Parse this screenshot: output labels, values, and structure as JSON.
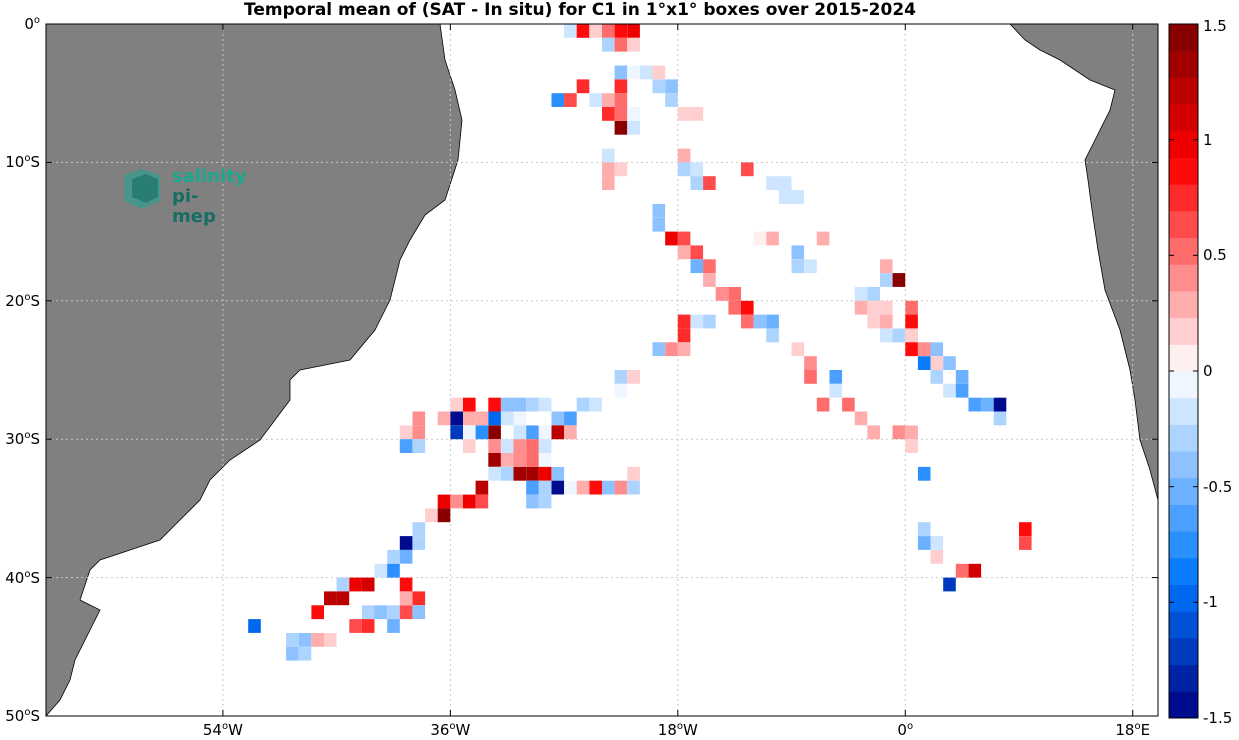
{
  "title": "Temporal mean of (SAT - In situ) for C1 in 1°x1° boxes over 2015-2024",
  "logo": {
    "line1": "salinity",
    "line2": "pi-mep"
  },
  "colors": {
    "land": "#808080",
    "grid": "#c8c8c8",
    "background": "#ffffff"
  },
  "map": {
    "lon_range": [
      -68,
      20
    ],
    "lat_range": [
      -50,
      0
    ],
    "y_ticks": [
      {
        "lat": 0,
        "deg": "0",
        "hem": ""
      },
      {
        "lat": -10,
        "deg": "10",
        "hem": "S"
      },
      {
        "lat": -20,
        "deg": "20",
        "hem": "S"
      },
      {
        "lat": -30,
        "deg": "30",
        "hem": "S"
      },
      {
        "lat": -40,
        "deg": "40",
        "hem": "S"
      },
      {
        "lat": -50,
        "deg": "50",
        "hem": "S"
      }
    ],
    "x_ticks": [
      {
        "lon": -54,
        "deg": "54",
        "hem": "W"
      },
      {
        "lon": -36,
        "deg": "36",
        "hem": "W"
      },
      {
        "lon": -18,
        "deg": "18",
        "hem": "W"
      },
      {
        "lon": 0,
        "deg": "0",
        "hem": ""
      },
      {
        "lon": 18,
        "deg": "18",
        "hem": "E"
      }
    ]
  },
  "colorbar": {
    "range": [
      -1.5,
      1.5
    ],
    "levels": 26,
    "ticks": [
      {
        "value": 1.5,
        "label": "1.5"
      },
      {
        "value": 1,
        "label": "1"
      },
      {
        "value": 0.5,
        "label": "0.5"
      },
      {
        "value": 0,
        "label": "0"
      },
      {
        "value": -0.5,
        "label": "-0.5"
      },
      {
        "value": -1,
        "label": "-1"
      },
      {
        "value": -1.5,
        "label": "-1.5"
      }
    ]
  },
  "chart_data": {
    "type": "heatmap",
    "title": "Temporal mean of (SAT - In situ) for C1 in 1°x1° boxes over 2015-2024",
    "cell_size_deg": 1,
    "units_note": "value = mean difference SAT - In situ",
    "cells": [
      {
        "lon": -26.5,
        "lat": -0.5,
        "v": -0.2
      },
      {
        "lon": -25.5,
        "lat": -0.5,
        "v": 0.9
      },
      {
        "lon": -24.5,
        "lat": -0.5,
        "v": 0.2
      },
      {
        "lon": -23.5,
        "lat": -0.5,
        "v": 0.5
      },
      {
        "lon": -22.5,
        "lat": -0.5,
        "v": 0.9
      },
      {
        "lon": -21.5,
        "lat": -0.5,
        "v": 1.0
      },
      {
        "lon": -23.5,
        "lat": -1.5,
        "v": -0.3
      },
      {
        "lon": -22.5,
        "lat": -1.5,
        "v": 0.5
      },
      {
        "lon": -21.5,
        "lat": -1.5,
        "v": 0.2
      },
      {
        "lon": -22.5,
        "lat": -3.5,
        "v": -0.4
      },
      {
        "lon": -21.5,
        "lat": -3.5,
        "v": -0.1
      },
      {
        "lon": -20.5,
        "lat": -3.5,
        "v": -0.2
      },
      {
        "lon": -19.5,
        "lat": -3.5,
        "v": 0.2
      },
      {
        "lon": -25.5,
        "lat": -4.5,
        "v": 0.8
      },
      {
        "lon": -22.5,
        "lat": -4.5,
        "v": 0.8
      },
      {
        "lon": -19.5,
        "lat": -4.5,
        "v": -0.3
      },
      {
        "lon": -18.5,
        "lat": -4.5,
        "v": -0.4
      },
      {
        "lon": -27.5,
        "lat": -5.5,
        "v": -0.8
      },
      {
        "lon": -26.5,
        "lat": -5.5,
        "v": 0.6
      },
      {
        "lon": -24.5,
        "lat": -5.5,
        "v": -0.2
      },
      {
        "lon": -23.5,
        "lat": -5.5,
        "v": 0.3
      },
      {
        "lon": -22.5,
        "lat": -5.5,
        "v": 0.5
      },
      {
        "lon": -18.5,
        "lat": -5.5,
        "v": -0.3
      },
      {
        "lon": -23.5,
        "lat": -6.5,
        "v": 0.7
      },
      {
        "lon": -22.5,
        "lat": -6.5,
        "v": 0.5
      },
      {
        "lon": -21.5,
        "lat": -6.5,
        "v": -0.1
      },
      {
        "lon": -17.5,
        "lat": -6.5,
        "v": 0.15
      },
      {
        "lon": -16.5,
        "lat": -6.5,
        "v": 0.15
      },
      {
        "lon": -22.5,
        "lat": -7.5,
        "v": 1.45
      },
      {
        "lon": -21.5,
        "lat": -7.5,
        "v": -0.15
      },
      {
        "lon": -23.5,
        "lat": -9.5,
        "v": -0.2
      },
      {
        "lon": -17.5,
        "lat": -9.5,
        "v": 0.3
      },
      {
        "lon": -23.5,
        "lat": -10.5,
        "v": 0.3
      },
      {
        "lon": -22.5,
        "lat": -10.5,
        "v": 0.15
      },
      {
        "lon": -17.5,
        "lat": -10.5,
        "v": -0.3
      },
      {
        "lon": -16.5,
        "lat": -10.5,
        "v": -0.2
      },
      {
        "lon": -12.5,
        "lat": -10.5,
        "v": 0.6
      },
      {
        "lon": -23.5,
        "lat": -11.5,
        "v": 0.3
      },
      {
        "lon": -16.5,
        "lat": -11.5,
        "v": -0.3
      },
      {
        "lon": -15.5,
        "lat": -11.5,
        "v": 0.6
      },
      {
        "lon": -10.5,
        "lat": -11.5,
        "v": -0.15
      },
      {
        "lon": -9.5,
        "lat": -11.5,
        "v": -0.2
      },
      {
        "lon": -9.5,
        "lat": -12.5,
        "v": -0.2
      },
      {
        "lon": -8.5,
        "lat": -12.5,
        "v": -0.2
      },
      {
        "lon": -19.5,
        "lat": -13.5,
        "v": -0.4
      },
      {
        "lon": -19.5,
        "lat": -14.5,
        "v": -0.4
      },
      {
        "lon": -18.5,
        "lat": -15.5,
        "v": 1.0
      },
      {
        "lon": -17.5,
        "lat": -15.5,
        "v": 0.6
      },
      {
        "lon": -11.5,
        "lat": -15.5,
        "v": 0.1
      },
      {
        "lon": -10.5,
        "lat": -15.5,
        "v": 0.3
      },
      {
        "lon": -6.5,
        "lat": -15.5,
        "v": 0.3
      },
      {
        "lon": -17.5,
        "lat": -16.5,
        "v": 0.3
      },
      {
        "lon": -16.5,
        "lat": -16.5,
        "v": 0.6
      },
      {
        "lon": -8.5,
        "lat": -16.5,
        "v": -0.4
      },
      {
        "lon": -16.5,
        "lat": -17.5,
        "v": -0.5
      },
      {
        "lon": -15.5,
        "lat": -17.5,
        "v": 0.5
      },
      {
        "lon": -8.5,
        "lat": -17.5,
        "v": -0.25
      },
      {
        "lon": -7.5,
        "lat": -17.5,
        "v": -0.2
      },
      {
        "lon": -1.5,
        "lat": -17.5,
        "v": 0.3
      },
      {
        "lon": -15.5,
        "lat": -18.5,
        "v": 0.3
      },
      {
        "lon": -1.5,
        "lat": -18.5,
        "v": -0.3
      },
      {
        "lon": -0.5,
        "lat": -18.5,
        "v": 1.4
      },
      {
        "lon": -14.5,
        "lat": -19.5,
        "v": 0.4
      },
      {
        "lon": -13.5,
        "lat": -19.5,
        "v": 0.5
      },
      {
        "lon": -3.5,
        "lat": -19.5,
        "v": -0.2
      },
      {
        "lon": -2.5,
        "lat": -19.5,
        "v": -0.3
      },
      {
        "lon": -13.5,
        "lat": -20.5,
        "v": 0.5
      },
      {
        "lon": -12.5,
        "lat": -20.5,
        "v": 0.9
      },
      {
        "lon": -3.5,
        "lat": -20.5,
        "v": 0.3
      },
      {
        "lon": -2.5,
        "lat": -20.5,
        "v": 0.2
      },
      {
        "lon": -1.5,
        "lat": -20.5,
        "v": 0.2
      },
      {
        "lon": 0.5,
        "lat": -20.5,
        "v": 0.5
      },
      {
        "lon": -17.5,
        "lat": -21.5,
        "v": 0.8
      },
      {
        "lon": -16.5,
        "lat": -21.5,
        "v": -0.2
      },
      {
        "lon": -15.5,
        "lat": -21.5,
        "v": -0.3
      },
      {
        "lon": -12.5,
        "lat": -21.5,
        "v": 0.5
      },
      {
        "lon": -11.5,
        "lat": -21.5,
        "v": -0.4
      },
      {
        "lon": -10.5,
        "lat": -21.5,
        "v": -0.5
      },
      {
        "lon": -2.5,
        "lat": -21.5,
        "v": 0.2
      },
      {
        "lon": -1.5,
        "lat": -21.5,
        "v": 0.3
      },
      {
        "lon": 0.5,
        "lat": -21.5,
        "v": 0.9
      },
      {
        "lon": -17.5,
        "lat": -22.5,
        "v": 0.8
      },
      {
        "lon": -10.5,
        "lat": -22.5,
        "v": -0.3
      },
      {
        "lon": -1.5,
        "lat": -22.5,
        "v": -0.2
      },
      {
        "lon": -0.5,
        "lat": -22.5,
        "v": -0.3
      },
      {
        "lon": 0.5,
        "lat": -22.5,
        "v": 0.2
      },
      {
        "lon": -19.5,
        "lat": -23.5,
        "v": -0.4
      },
      {
        "lon": -18.5,
        "lat": -23.5,
        "v": 0.4
      },
      {
        "lon": -17.5,
        "lat": -23.5,
        "v": 0.3
      },
      {
        "lon": -8.5,
        "lat": -23.5,
        "v": 0.15
      },
      {
        "lon": 0.5,
        "lat": -23.5,
        "v": 0.9
      },
      {
        "lon": 1.5,
        "lat": -23.5,
        "v": 0.4
      },
      {
        "lon": 2.5,
        "lat": -23.5,
        "v": -0.4
      },
      {
        "lon": -7.5,
        "lat": -24.5,
        "v": 0.4
      },
      {
        "lon": 1.5,
        "lat": -24.5,
        "v": -0.9
      },
      {
        "lon": 2.5,
        "lat": -24.5,
        "v": 0.2
      },
      {
        "lon": 3.5,
        "lat": -24.5,
        "v": -0.4
      },
      {
        "lon": -22.5,
        "lat": -25.5,
        "v": -0.3
      },
      {
        "lon": -21.5,
        "lat": -25.5,
        "v": 0.2
      },
      {
        "lon": -7.5,
        "lat": -25.5,
        "v": 0.5
      },
      {
        "lon": -5.5,
        "lat": -25.5,
        "v": -0.6
      },
      {
        "lon": 2.5,
        "lat": -25.5,
        "v": -0.3
      },
      {
        "lon": 4.5,
        "lat": -25.5,
        "v": -0.5
      },
      {
        "lon": -22.5,
        "lat": -26.5,
        "v": -0.1
      },
      {
        "lon": -5.5,
        "lat": -26.5,
        "v": -0.2
      },
      {
        "lon": 3.5,
        "lat": -26.5,
        "v": -0.2
      },
      {
        "lon": 4.5,
        "lat": -26.5,
        "v": -0.6
      },
      {
        "lon": -35.5,
        "lat": -27.5,
        "v": 0.2
      },
      {
        "lon": -34.5,
        "lat": -27.5,
        "v": 0.9
      },
      {
        "lon": -32.5,
        "lat": -27.5,
        "v": 0.9
      },
      {
        "lon": -31.5,
        "lat": -27.5,
        "v": -0.4
      },
      {
        "lon": -30.5,
        "lat": -27.5,
        "v": -0.4
      },
      {
        "lon": -29.5,
        "lat": -27.5,
        "v": -0.3
      },
      {
        "lon": -28.5,
        "lat": -27.5,
        "v": -0.2
      },
      {
        "lon": -25.5,
        "lat": -27.5,
        "v": -0.3
      },
      {
        "lon": -24.5,
        "lat": -27.5,
        "v": -0.2
      },
      {
        "lon": -6.5,
        "lat": -27.5,
        "v": 0.5
      },
      {
        "lon": -4.5,
        "lat": -27.5,
        "v": 0.5
      },
      {
        "lon": 5.5,
        "lat": -27.5,
        "v": -0.6
      },
      {
        "lon": 6.5,
        "lat": -27.5,
        "v": -0.5
      },
      {
        "lon": 7.5,
        "lat": -27.5,
        "v": -1.5
      },
      {
        "lon": -38.5,
        "lat": -28.5,
        "v": 0.4
      },
      {
        "lon": -36.5,
        "lat": -28.5,
        "v": 0.3
      },
      {
        "lon": -35.5,
        "lat": -28.5,
        "v": -1.4
      },
      {
        "lon": -34.5,
        "lat": -28.5,
        "v": 0.3
      },
      {
        "lon": -33.5,
        "lat": -28.5,
        "v": 0.3
      },
      {
        "lon": -32.5,
        "lat": -28.5,
        "v": -1.0
      },
      {
        "lon": -31.5,
        "lat": -28.5,
        "v": -0.2
      },
      {
        "lon": -30.5,
        "lat": -28.5,
        "v": -0.1
      },
      {
        "lon": -27.5,
        "lat": -28.5,
        "v": -0.4
      },
      {
        "lon": -26.5,
        "lat": -28.5,
        "v": -0.6
      },
      {
        "lon": -3.5,
        "lat": -28.5,
        "v": 0.3
      },
      {
        "lon": 7.5,
        "lat": -28.5,
        "v": -0.3
      },
      {
        "lon": -39.5,
        "lat": -29.5,
        "v": 0.2
      },
      {
        "lon": -38.5,
        "lat": -29.5,
        "v": 0.4
      },
      {
        "lon": -35.5,
        "lat": -29.5,
        "v": -1.2
      },
      {
        "lon": -34.5,
        "lat": -29.5,
        "v": -0.1
      },
      {
        "lon": -33.5,
        "lat": -29.5,
        "v": -0.7
      },
      {
        "lon": -32.5,
        "lat": -29.5,
        "v": 1.4
      },
      {
        "lon": -30.5,
        "lat": -29.5,
        "v": -0.2
      },
      {
        "lon": -29.5,
        "lat": -29.5,
        "v": -0.6
      },
      {
        "lon": -28.5,
        "lat": -29.5,
        "v": -0.1
      },
      {
        "lon": -27.5,
        "lat": -29.5,
        "v": 1.2
      },
      {
        "lon": -26.5,
        "lat": -29.5,
        "v": 0.3
      },
      {
        "lon": -2.5,
        "lat": -29.5,
        "v": 0.3
      },
      {
        "lon": -0.5,
        "lat": -29.5,
        "v": 0.4
      },
      {
        "lon": 0.5,
        "lat": -29.5,
        "v": 0.3
      },
      {
        "lon": -39.5,
        "lat": -30.5,
        "v": -0.6
      },
      {
        "lon": -38.5,
        "lat": -30.5,
        "v": -0.3
      },
      {
        "lon": -34.5,
        "lat": -30.5,
        "v": 0.2
      },
      {
        "lon": -32.5,
        "lat": -30.5,
        "v": 0.4
      },
      {
        "lon": -31.5,
        "lat": -30.5,
        "v": -0.2
      },
      {
        "lon": -30.5,
        "lat": -30.5,
        "v": 0.4
      },
      {
        "lon": -29.5,
        "lat": -30.5,
        "v": 0.5
      },
      {
        "lon": -28.5,
        "lat": -30.5,
        "v": -0.2
      },
      {
        "lon": 0.5,
        "lat": -30.5,
        "v": 0.15
      },
      {
        "lon": -32.5,
        "lat": -31.5,
        "v": 1.3
      },
      {
        "lon": -31.5,
        "lat": -31.5,
        "v": 0.3
      },
      {
        "lon": -30.5,
        "lat": -31.5,
        "v": 0.4
      },
      {
        "lon": -29.5,
        "lat": -31.5,
        "v": 0.5
      },
      {
        "lon": -28.5,
        "lat": -31.5,
        "v": -0.1
      },
      {
        "lon": -32.5,
        "lat": -32.5,
        "v": -0.2
      },
      {
        "lon": -31.5,
        "lat": -32.5,
        "v": -0.3
      },
      {
        "lon": -30.5,
        "lat": -32.5,
        "v": 1.3
      },
      {
        "lon": -29.5,
        "lat": -32.5,
        "v": 1.3
      },
      {
        "lon": -28.5,
        "lat": -32.5,
        "v": 1.0
      },
      {
        "lon": -27.5,
        "lat": -32.5,
        "v": -0.4
      },
      {
        "lon": -21.5,
        "lat": -32.5,
        "v": 0.15
      },
      {
        "lon": 1.5,
        "lat": -32.5,
        "v": -0.7
      },
      {
        "lon": -33.5,
        "lat": -33.5,
        "v": 1.2
      },
      {
        "lon": -29.5,
        "lat": -33.5,
        "v": -0.6
      },
      {
        "lon": -28.5,
        "lat": -33.5,
        "v": -0.3
      },
      {
        "lon": -27.5,
        "lat": -33.5,
        "v": -1.4
      },
      {
        "lon": -26.5,
        "lat": -33.5,
        "v": -0.1
      },
      {
        "lon": -25.5,
        "lat": -33.5,
        "v": 0.3
      },
      {
        "lon": -24.5,
        "lat": -33.5,
        "v": 0.9
      },
      {
        "lon": -23.5,
        "lat": -33.5,
        "v": -0.4
      },
      {
        "lon": -22.5,
        "lat": -33.5,
        "v": 0.4
      },
      {
        "lon": -21.5,
        "lat": -33.5,
        "v": -0.3
      },
      {
        "lon": -36.5,
        "lat": -34.5,
        "v": 1.0
      },
      {
        "lon": -35.5,
        "lat": -34.5,
        "v": 0.4
      },
      {
        "lon": -34.5,
        "lat": -34.5,
        "v": 1.0
      },
      {
        "lon": -33.5,
        "lat": -34.5,
        "v": 0.6
      },
      {
        "lon": -29.5,
        "lat": -34.5,
        "v": -0.4
      },
      {
        "lon": -28.5,
        "lat": -34.5,
        "v": -0.3
      },
      {
        "lon": -37.5,
        "lat": -35.5,
        "v": 0.2
      },
      {
        "lon": -36.5,
        "lat": -35.5,
        "v": 1.4
      },
      {
        "lon": -38.5,
        "lat": -36.5,
        "v": -0.3
      },
      {
        "lon": 1.5,
        "lat": -36.5,
        "v": -0.3
      },
      {
        "lon": 9.5,
        "lat": -36.5,
        "v": 0.9
      },
      {
        "lon": -39.5,
        "lat": -37.5,
        "v": -1.5
      },
      {
        "lon": -38.5,
        "lat": -37.5,
        "v": -0.3
      },
      {
        "lon": 1.5,
        "lat": -37.5,
        "v": -0.5
      },
      {
        "lon": 2.5,
        "lat": -37.5,
        "v": -0.2
      },
      {
        "lon": 9.5,
        "lat": -37.5,
        "v": 0.6
      },
      {
        "lon": -40.5,
        "lat": -38.5,
        "v": -0.3
      },
      {
        "lon": -39.5,
        "lat": -38.5,
        "v": -0.5
      },
      {
        "lon": 2.5,
        "lat": -38.5,
        "v": 0.15
      },
      {
        "lon": -41.5,
        "lat": -39.5,
        "v": -0.2
      },
      {
        "lon": -40.5,
        "lat": -39.5,
        "v": -0.7
      },
      {
        "lon": 4.5,
        "lat": -39.5,
        "v": 0.5
      },
      {
        "lon": 5.5,
        "lat": -39.5,
        "v": 1.1
      },
      {
        "lon": -44.5,
        "lat": -40.5,
        "v": -0.3
      },
      {
        "lon": -43.5,
        "lat": -40.5,
        "v": 1.0
      },
      {
        "lon": -42.5,
        "lat": -40.5,
        "v": 1.1
      },
      {
        "lon": -39.5,
        "lat": -40.5,
        "v": 0.9
      },
      {
        "lon": 3.5,
        "lat": -40.5,
        "v": -1.2
      },
      {
        "lon": -45.5,
        "lat": -41.5,
        "v": 1.2
      },
      {
        "lon": -44.5,
        "lat": -41.5,
        "v": 1.2
      },
      {
        "lon": -39.5,
        "lat": -41.5,
        "v": 0.3
      },
      {
        "lon": -38.5,
        "lat": -41.5,
        "v": 0.7
      },
      {
        "lon": -46.5,
        "lat": -42.5,
        "v": 0.9
      },
      {
        "lon": -42.5,
        "lat": -42.5,
        "v": -0.3
      },
      {
        "lon": -41.5,
        "lat": -42.5,
        "v": -0.4
      },
      {
        "lon": -40.5,
        "lat": -42.5,
        "v": -0.3
      },
      {
        "lon": -39.5,
        "lat": -42.5,
        "v": 0.6
      },
      {
        "lon": -38.5,
        "lat": -42.5,
        "v": -0.4
      },
      {
        "lon": -51.5,
        "lat": -43.5,
        "v": -1.0
      },
      {
        "lon": -43.5,
        "lat": -43.5,
        "v": 0.6
      },
      {
        "lon": -42.5,
        "lat": -43.5,
        "v": 0.8
      },
      {
        "lon": -40.5,
        "lat": -43.5,
        "v": -0.5
      },
      {
        "lon": -48.5,
        "lat": -44.5,
        "v": -0.3
      },
      {
        "lon": -47.5,
        "lat": -44.5,
        "v": -0.4
      },
      {
        "lon": -46.5,
        "lat": -44.5,
        "v": 0.3
      },
      {
        "lon": -45.5,
        "lat": -44.5,
        "v": 0.2
      },
      {
        "lon": -48.5,
        "lat": -45.5,
        "v": -0.4
      },
      {
        "lon": -47.5,
        "lat": -45.5,
        "v": -0.3
      }
    ]
  }
}
